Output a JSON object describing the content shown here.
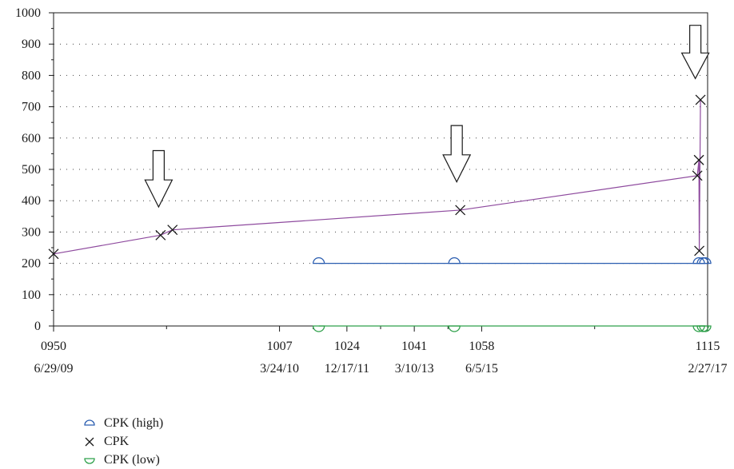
{
  "chart_data": {
    "type": "line",
    "ylim": [
      0,
      1000
    ],
    "yticks": [
      0,
      100,
      200,
      300,
      400,
      500,
      600,
      700,
      800,
      900,
      1000
    ],
    "xticks": [
      {
        "x": 950,
        "label": "0950",
        "date": "6/29/09"
      },
      {
        "x": 1007,
        "label": "1007",
        "date": "3/24/10"
      },
      {
        "x": 1024,
        "label": "1024",
        "date": "12/17/11"
      },
      {
        "x": 1041,
        "label": "1041",
        "date": "3/10/13"
      },
      {
        "x": 1058,
        "label": "1058",
        "date": "6/5/15"
      },
      {
        "x": 1115,
        "label": "1115",
        "date": "2/27/17"
      }
    ],
    "grid": "horizontal-dotted",
    "series": [
      {
        "name": "CPK (high)",
        "marker": "half-circle-top",
        "color": "#2a5db0",
        "x": [
          1016.9,
          1051.1,
          1112.8,
          1113.8,
          1114.4
        ],
        "values": [
          200,
          200,
          200,
          200,
          200
        ]
      },
      {
        "name": "CPK",
        "marker": "x",
        "color": "#1a1a1a",
        "line_color": "#8e4a9e",
        "x": [
          950,
          977,
          980,
          1052.6,
          1112.4,
          1112.8,
          1112.9,
          1113.2
        ],
        "values": [
          230,
          290,
          307,
          370,
          480,
          530,
          240,
          722
        ]
      },
      {
        "name": "CPK (low)",
        "marker": "half-circle-bottom",
        "color": "#2ea04a",
        "x": [
          1016.9,
          1051.1,
          1112.8,
          1113.8,
          1114.4
        ],
        "values": [
          0,
          0,
          0,
          0,
          0
        ]
      }
    ],
    "annotations": [
      {
        "type": "down-arrow",
        "x": 976.5,
        "y_top": 560,
        "y_bottom": 380
      },
      {
        "type": "down-arrow",
        "x": 1051.7,
        "y_top": 640,
        "y_bottom": 460
      },
      {
        "type": "down-arrow",
        "x": 1111.9,
        "y_top": 960,
        "y_bottom": 790
      }
    ]
  }
}
